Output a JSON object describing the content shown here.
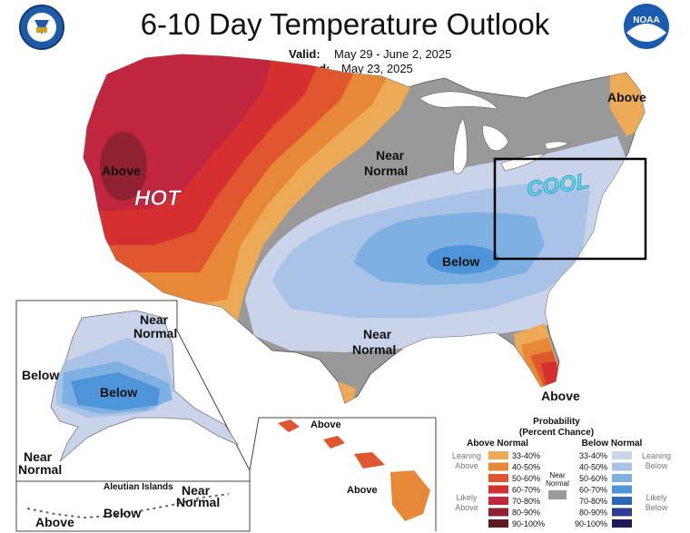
{
  "title": "6-10 Day Temperature Outlook",
  "valid_label": "Valid:",
  "valid_value": "May 29 - June 2, 2025",
  "issued_label": "Issued:",
  "issued_value": "May 23, 2025",
  "logos": {
    "left": "Department of Commerce seal",
    "right": "NOAA logo"
  },
  "map_labels": {
    "above_west": "Above",
    "hot": "HOT",
    "near_normal_north_1": "Near",
    "near_normal_north_2": "Normal",
    "above_northeast": "Above",
    "cool": "COOL",
    "below_central": "Below",
    "near_normal_south_1": "Near",
    "near_normal_south_2": "Normal",
    "above_florida": "Above"
  },
  "alaska_labels": {
    "near_1": "Near",
    "near_2": "Normal",
    "below_west": "Below",
    "below_center": "Below",
    "near_sw_1": "Near",
    "near_sw_2": "Normal",
    "aleutian": "Aleutian Islands",
    "aleutian_near_1": "Near",
    "aleutian_near_2": "Normal",
    "aleutian_below": "Below",
    "aleutian_above": "Above"
  },
  "hawaii_labels": {
    "above_1": "Above",
    "above_2": "Above"
  },
  "legend": {
    "title_1": "Probability",
    "title_2": "(Percent Chance)",
    "above_header": "Above Normal",
    "below_header": "Below Normal",
    "leaning_above_1": "Leaning",
    "leaning_above_2": "Above",
    "likely_above_1": "Likely",
    "likely_above_2": "Above",
    "leaning_below_1": "Leaning",
    "leaning_below_2": "Below",
    "likely_below_1": "Likely",
    "likely_below_2": "Below",
    "near_1": "Near",
    "near_2": "Normal",
    "above_bins": [
      {
        "label": "33-40%",
        "color": "#ecaa57"
      },
      {
        "label": "40-50%",
        "color": "#e78838"
      },
      {
        "label": "50-60%",
        "color": "#e0562e"
      },
      {
        "label": "60-70%",
        "color": "#d52f2f"
      },
      {
        "label": "70-80%",
        "color": "#c0263d"
      },
      {
        "label": "80-90%",
        "color": "#8f2130"
      },
      {
        "label": "90-100%",
        "color": "#5e1a22"
      }
    ],
    "below_bins": [
      {
        "label": "33-40%",
        "color": "#c9d3ea"
      },
      {
        "label": "40-50%",
        "color": "#a9c3e6"
      },
      {
        "label": "50-60%",
        "color": "#7fb0e2"
      },
      {
        "label": "60-70%",
        "color": "#4d94d9"
      },
      {
        "label": "70-80%",
        "color": "#2b67b7"
      },
      {
        "label": "80-90%",
        "color": "#2e3b8f"
      },
      {
        "label": "90-100%",
        "color": "#1c1c5a"
      }
    ],
    "near_color": "#9a9a9a"
  },
  "colors": {
    "normal_gray": "#999999",
    "cool_text": "#5ed7ea"
  }
}
